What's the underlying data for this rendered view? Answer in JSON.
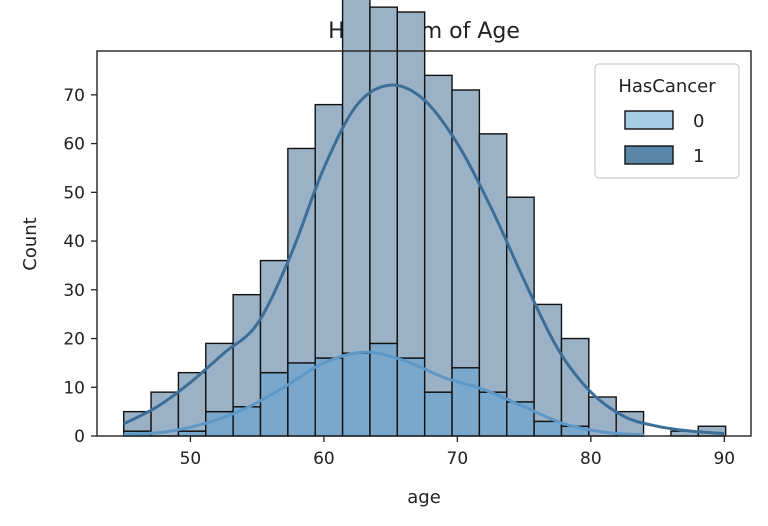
{
  "chart_data": {
    "type": "histogram",
    "title": "Histogram of Age",
    "xlabel": "age",
    "ylabel": "Count",
    "xlim": [
      43,
      92
    ],
    "ylim": [
      0,
      79
    ],
    "xticks": [
      50,
      60,
      70,
      80,
      90
    ],
    "yticks": [
      0,
      10,
      20,
      30,
      40,
      50,
      60,
      70
    ],
    "legend": {
      "title": "HasCancer",
      "position": "top-right",
      "entries": [
        "0",
        "1"
      ]
    },
    "bins": [
      {
        "start": 45.0,
        "end": 47.05
      },
      {
        "start": 47.05,
        "end": 49.1
      },
      {
        "start": 49.1,
        "end": 51.15
      },
      {
        "start": 51.15,
        "end": 53.2
      },
      {
        "start": 53.2,
        "end": 55.25
      },
      {
        "start": 55.25,
        "end": 57.3
      },
      {
        "start": 57.3,
        "end": 59.35
      },
      {
        "start": 59.35,
        "end": 61.4
      },
      {
        "start": 61.4,
        "end": 63.45
      },
      {
        "start": 63.45,
        "end": 65.5
      },
      {
        "start": 65.5,
        "end": 67.55
      },
      {
        "start": 67.55,
        "end": 69.6
      },
      {
        "start": 69.6,
        "end": 71.65
      },
      {
        "start": 71.65,
        "end": 73.7
      },
      {
        "start": 73.7,
        "end": 75.75
      },
      {
        "start": 75.75,
        "end": 77.8
      },
      {
        "start": 77.8,
        "end": 79.85
      },
      {
        "start": 79.85,
        "end": 81.9
      },
      {
        "start": 81.9,
        "end": 83.95
      },
      {
        "start": 83.95,
        "end": 86.0
      },
      {
        "start": 86.0,
        "end": 88.05
      },
      {
        "start": 88.05,
        "end": 90.1
      }
    ],
    "series": [
      {
        "name": "0",
        "color": "#a6cde3",
        "counts": [
          1,
          0,
          1,
          5,
          6,
          13,
          15,
          16,
          17,
          19,
          16,
          9,
          14,
          9,
          7,
          3,
          2,
          0,
          0,
          0,
          0,
          0
        ],
        "kde_x": [
          45,
          48,
          51,
          54,
          57,
          60,
          63,
          66,
          69,
          72,
          75,
          78,
          81,
          84
        ],
        "kde_y": [
          0.3,
          0.8,
          2.5,
          5.5,
          10,
          15,
          17.2,
          15.5,
          12,
          9.5,
          6,
          2.5,
          0.8,
          0.2
        ]
      },
      {
        "name": "1",
        "color": "#5a86aa",
        "counts": [
          4,
          9,
          12,
          14,
          23,
          23,
          44,
          52,
          76,
          69,
          71,
          65,
          57,
          53,
          42,
          24,
          18,
          8,
          5,
          0,
          1,
          2
        ],
        "kde_x": [
          45,
          47.5,
          50,
          52.5,
          55,
          57.5,
          60,
          62.5,
          65,
          67.5,
          70,
          72.5,
          75,
          77.5,
          80,
          82.5,
          85,
          87.5,
          90
        ],
        "kde_y": [
          2.5,
          6,
          11,
          17,
          23,
          37,
          55,
          68,
          72,
          69,
          60,
          47,
          32,
          18,
          9,
          4,
          2,
          1,
          0.5
        ]
      }
    ]
  }
}
